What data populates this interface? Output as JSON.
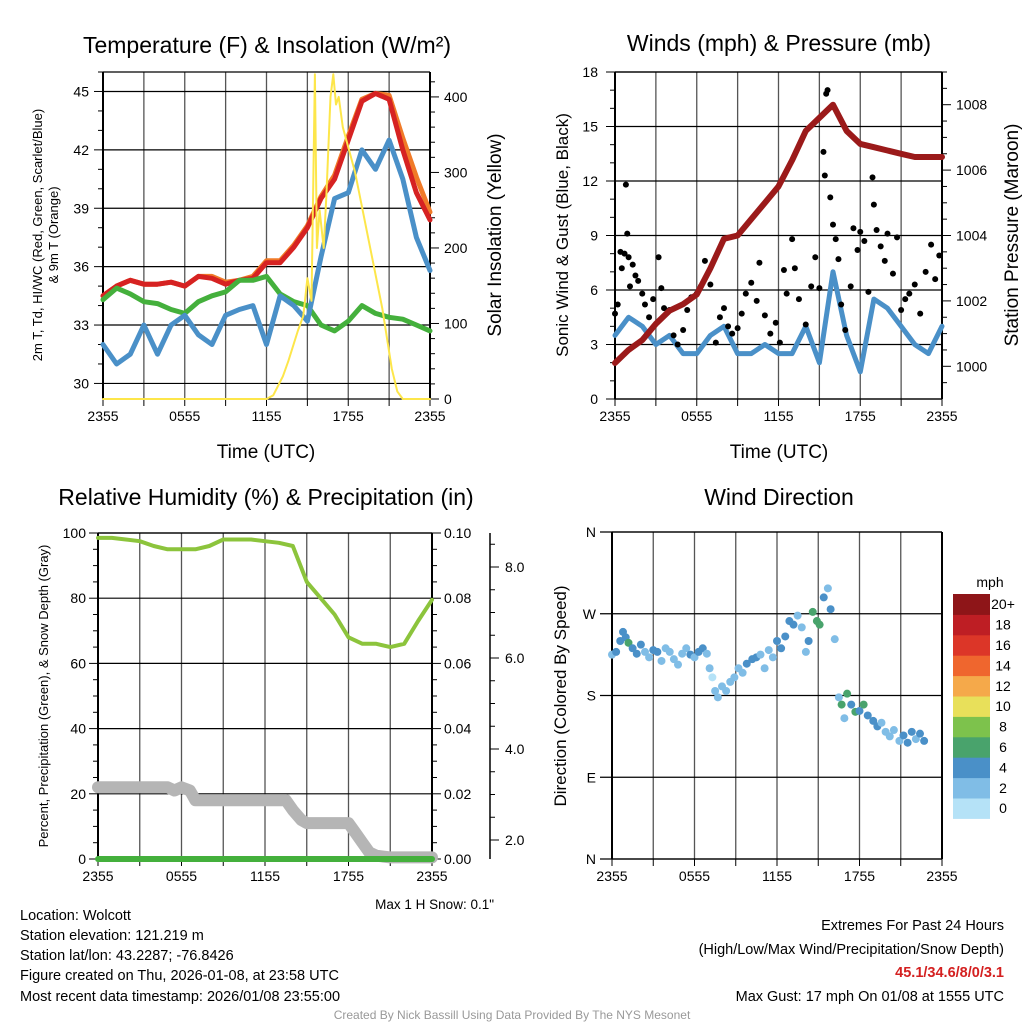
{
  "colors": {
    "red": "#d62222",
    "orange": "#f07a28",
    "green": "#44b03c",
    "blue": "#4a90c8",
    "yellow": "#fde64a",
    "maroon": "#9b1a1a",
    "gust": "#000000",
    "rh": "#8cc43c",
    "precip": "#44b03c",
    "snow": "#b5b5b5"
  },
  "chart_data": [
    {
      "type": "line",
      "title": "Temperature (F) & Insolation (W/m²)",
      "xlabel": "Time (UTC)",
      "ylabel": [
        "2m T, Td, HI/WC (Red, Green, Scarlet/Blue)",
        "& 9m T (Orange)"
      ],
      "ylabel_right": "Solar Insolation (Yellow)",
      "x_ticks": [
        "2355",
        "0555",
        "1155",
        "1755",
        "2355"
      ],
      "x_range_hours": [
        0,
        24
      ],
      "ylim": [
        29.2,
        46
      ],
      "y_ticks": [
        "30",
        "33",
        "36",
        "39",
        "42",
        "45"
      ],
      "ylim_right": [
        0,
        433
      ],
      "y_ticks_right": [
        "0",
        "100",
        "200",
        "300",
        "400"
      ],
      "series": [
        {
          "name": "2m T",
          "color_key": "orange",
          "values": [
            34.5,
            35.0,
            35.3,
            35.1,
            35.1,
            35.2,
            35.0,
            35.5,
            35.5,
            35.2,
            35.3,
            35.5,
            36.3,
            36.3,
            37.1,
            38.1,
            39.6,
            40.7,
            42.7,
            44.6,
            44.9,
            44.8,
            42.6,
            40.6,
            38.8
          ]
        },
        {
          "name": "HI/WC",
          "color_key": "red",
          "values": [
            34.5,
            35.0,
            35.3,
            35.1,
            35.1,
            35.2,
            35.0,
            35.5,
            35.4,
            35.1,
            35.3,
            35.4,
            36.2,
            36.2,
            37.0,
            38.0,
            39.5,
            40.5,
            42.5,
            44.5,
            44.9,
            44.6,
            42.0,
            39.8,
            38.4
          ]
        },
        {
          "name": "Td",
          "color_key": "green",
          "values": [
            34.3,
            34.9,
            34.6,
            34.2,
            34.1,
            33.8,
            33.6,
            34.2,
            34.5,
            34.7,
            35.3,
            35.3,
            35.5,
            34.6,
            34.2,
            34.0,
            33.0,
            32.7,
            33.2,
            34.0,
            33.6,
            33.4,
            33.3,
            33.0,
            32.7
          ]
        },
        {
          "name": "Scarlet/Blue",
          "color_key": "blue",
          "values": [
            32.0,
            31.0,
            31.5,
            33.0,
            31.5,
            33.0,
            33.5,
            32.5,
            32.0,
            33.5,
            33.8,
            34.0,
            32.0,
            34.5,
            34.0,
            33.2,
            36.5,
            39.5,
            39.8,
            42.0,
            41.0,
            42.5,
            40.5,
            37.5,
            35.8
          ]
        }
      ],
      "solar": {
        "color_key": "yellow",
        "hours": [
          0,
          12,
          12.5,
          13.2,
          13.6,
          14.3,
          14.7,
          15.0,
          15.3,
          15.55,
          15.7,
          15.9,
          16.2,
          16.4,
          16.7,
          16.9,
          17.1,
          17.3,
          17.6,
          18.5,
          19.5,
          20.5,
          21.2,
          21.6,
          22,
          24
        ],
        "values": [
          0,
          0,
          5,
          30,
          50,
          90,
          110,
          160,
          130,
          430,
          200,
          250,
          200,
          270,
          400,
          430,
          390,
          400,
          360,
          300,
          210,
          120,
          40,
          10,
          0,
          0
        ]
      }
    },
    {
      "type": "line",
      "title": "Winds (mph) & Pressure (mb)",
      "xlabel": "Time (UTC)",
      "ylabel": "Sonic Wind & Gust (Blue, Black)",
      "ylabel_right": "Station Pressure (Maroon)",
      "x_ticks": [
        "2355",
        "0555",
        "1155",
        "1755",
        "2355"
      ],
      "ylim": [
        0,
        18
      ],
      "y_ticks": [
        "0",
        "3",
        "6",
        "9",
        "12",
        "15",
        "18"
      ],
      "ylim_right": [
        999,
        1009
      ],
      "y_ticks_right": [
        "1000",
        "1002",
        "1004",
        "1006",
        "1008"
      ],
      "wind": [
        3.5,
        4.5,
        4.0,
        3.0,
        3.5,
        2.5,
        2.5,
        3.5,
        4.0,
        2.5,
        2.5,
        3.0,
        2.5,
        2.5,
        4.0,
        2.0,
        7.0,
        3.5,
        1.5,
        5.5,
        5.0,
        4.0,
        3.0,
        2.5,
        4.0
      ],
      "pressure": [
        1000.1,
        1000.5,
        1000.8,
        1001.3,
        1001.7,
        1001.9,
        1002.2,
        1003.0,
        1003.9,
        1004.0,
        1004.5,
        1005.0,
        1005.5,
        1006.3,
        1007.2,
        1007.6,
        1008.0,
        1007.2,
        1006.8,
        1006.7,
        1006.6,
        1006.5,
        1006.4,
        1006.4,
        1006.4
      ],
      "gusts": [
        [
          0,
          4.7
        ],
        [
          0.2,
          5.2
        ],
        [
          0.4,
          8.1
        ],
        [
          0.5,
          7.2
        ],
        [
          0.7,
          8.0
        ],
        [
          0.8,
          11.8
        ],
        [
          0.9,
          9.1
        ],
        [
          1.0,
          7.8
        ],
        [
          1.1,
          6.2
        ],
        [
          1.3,
          7.4
        ],
        [
          1.5,
          6.8
        ],
        [
          1.7,
          6.5
        ],
        [
          2.0,
          5.8
        ],
        [
          2.2,
          5.2
        ],
        [
          2.5,
          4.5
        ],
        [
          2.8,
          5.5
        ],
        [
          3.2,
          7.8
        ],
        [
          3.4,
          6.1
        ],
        [
          3.6,
          5.0
        ],
        [
          4.0,
          4.9
        ],
        [
          4.3,
          3.5
        ],
        [
          4.6,
          3.0
        ],
        [
          5.0,
          3.8
        ],
        [
          5.3,
          4.9
        ],
        [
          5.6,
          5.6
        ],
        [
          6.0,
          5.8
        ],
        [
          6.3,
          6.2
        ],
        [
          6.6,
          7.6
        ],
        [
          7.0,
          6.3
        ],
        [
          7.4,
          3.1
        ],
        [
          7.7,
          4.5
        ],
        [
          8.0,
          5.0
        ],
        [
          8.3,
          4.0
        ],
        [
          8.6,
          3.6
        ],
        [
          9.0,
          3.9
        ],
        [
          9.3,
          4.7
        ],
        [
          9.6,
          5.8
        ],
        [
          10.0,
          6.4
        ],
        [
          10.4,
          5.4
        ],
        [
          10.6,
          7.5
        ],
        [
          11.0,
          4.6
        ],
        [
          11.4,
          3.6
        ],
        [
          11.8,
          4.2
        ],
        [
          12.1,
          3.1
        ],
        [
          12.4,
          7.1
        ],
        [
          12.6,
          5.8
        ],
        [
          13.0,
          8.8
        ],
        [
          13.2,
          7.2
        ],
        [
          13.5,
          5.5
        ],
        [
          14.0,
          4.1
        ],
        [
          14.4,
          6.2
        ],
        [
          14.7,
          7.8
        ],
        [
          15.0,
          6.1
        ],
        [
          15.3,
          13.6
        ],
        [
          15.4,
          12.3
        ],
        [
          15.5,
          16.8
        ],
        [
          15.6,
          17.0
        ],
        [
          15.8,
          11.1
        ],
        [
          16.0,
          9.6
        ],
        [
          16.2,
          8.8
        ],
        [
          16.4,
          7.7
        ],
        [
          16.6,
          5.2
        ],
        [
          16.9,
          3.8
        ],
        [
          17.3,
          6.2
        ],
        [
          17.5,
          9.4
        ],
        [
          17.8,
          8.2
        ],
        [
          18.0,
          9.2
        ],
        [
          18.3,
          8.7
        ],
        [
          18.6,
          5.9
        ],
        [
          18.9,
          12.2
        ],
        [
          19.0,
          10.7
        ],
        [
          19.2,
          9.3
        ],
        [
          19.5,
          8.4
        ],
        [
          19.8,
          7.6
        ],
        [
          20.0,
          9.1
        ],
        [
          20.4,
          6.9
        ],
        [
          20.7,
          8.9
        ],
        [
          21.0,
          4.9
        ],
        [
          21.3,
          5.5
        ],
        [
          21.6,
          5.8
        ],
        [
          22.0,
          6.3
        ],
        [
          22.4,
          4.7
        ],
        [
          22.8,
          7.0
        ],
        [
          23.2,
          8.5
        ],
        [
          23.5,
          6.6
        ],
        [
          23.8,
          7.9
        ]
      ]
    },
    {
      "type": "line",
      "title": "Relative Humidity (%) & Precipitation (in)",
      "ylabel": "Percent, Precipitation (Green), & Snow Depth (Gray)",
      "x_ticks": [
        "2355",
        "0555",
        "1155",
        "1755",
        "2355"
      ],
      "ylim": [
        0,
        100
      ],
      "y_ticks": [
        "0",
        "20",
        "40",
        "60",
        "80",
        "100"
      ],
      "ylim_right": [
        0,
        0.1
      ],
      "y_ticks_right": [
        "0.00",
        "0.02",
        "0.04",
        "0.06",
        "0.08",
        "0.10"
      ],
      "snow_ticks": [
        "2.0",
        "4.0",
        "6.0",
        "8.0"
      ],
      "rh": [
        98.5,
        98.5,
        98,
        97.5,
        96,
        95,
        95,
        95,
        96,
        98,
        98,
        98,
        97.5,
        97,
        96,
        85,
        80,
        75,
        68,
        66,
        66,
        65,
        66,
        73,
        79.5
      ],
      "precip": [
        0,
        0,
        0,
        0,
        0,
        0,
        0,
        0,
        0,
        0,
        0,
        0,
        0,
        0,
        0,
        0,
        0,
        0,
        0,
        0,
        0,
        0,
        0,
        0,
        0
      ],
      "snow_depth_axis_pct": {
        "hours": [
          0,
          5,
          5.5,
          6,
          6.6,
          7,
          13.5,
          14,
          14.6,
          15,
          18,
          18.5,
          19,
          19.5,
          20,
          21,
          24
        ],
        "values": [
          22,
          22,
          21,
          22,
          21,
          18,
          18,
          15,
          12,
          11,
          11,
          8,
          5,
          2,
          1,
          0.5,
          0.5
        ]
      },
      "note": "Max 1 H Snow: 0.1\""
    },
    {
      "type": "scatter",
      "title": "Wind Direction",
      "ylabel": "Direction (Colored By Speed)",
      "x_ticks": [
        "2355",
        "0555",
        "1155",
        "1755",
        "2355"
      ],
      "y_ticks": [
        "N",
        "E",
        "S",
        "W",
        "N"
      ],
      "ylim": [
        0,
        360
      ],
      "colorbar": {
        "title": "mph",
        "labels": [
          "0",
          "2",
          "4",
          "6",
          "8",
          "10",
          "12",
          "14",
          "16",
          "18",
          "20+"
        ],
        "colors": [
          "#b5e2f7",
          "#80bde6",
          "#4a90c8",
          "#49a36c",
          "#7dc24c",
          "#e8e05a",
          "#f5a94a",
          "#ef662e",
          "#dc3628",
          "#be1e24",
          "#8e1518"
        ]
      },
      "points": [
        [
          0,
          225,
          3
        ],
        [
          0.3,
          228,
          4
        ],
        [
          0.6,
          240,
          4
        ],
        [
          0.8,
          250,
          4
        ],
        [
          1.0,
          244,
          5
        ],
        [
          1.2,
          238,
          6
        ],
        [
          1.5,
          232,
          4
        ],
        [
          1.8,
          226,
          4
        ],
        [
          2.1,
          236,
          4
        ],
        [
          2.4,
          228,
          2
        ],
        [
          2.7,
          222,
          2
        ],
        [
          3.0,
          230,
          4
        ],
        [
          3.3,
          228,
          4
        ],
        [
          3.6,
          218,
          2
        ],
        [
          3.9,
          232,
          2
        ],
        [
          4.2,
          228,
          2
        ],
        [
          4.5,
          220,
          2
        ],
        [
          4.8,
          214,
          2
        ],
        [
          5.1,
          226,
          2
        ],
        [
          5.4,
          232,
          2
        ],
        [
          5.7,
          225,
          4
        ],
        [
          6.0,
          222,
          2
        ],
        [
          6.3,
          228,
          4
        ],
        [
          6.6,
          232,
          4
        ],
        [
          6.9,
          226,
          2
        ],
        [
          7.1,
          210,
          2
        ],
        [
          7.3,
          200,
          1
        ],
        [
          7.5,
          185,
          2
        ],
        [
          7.7,
          178,
          2
        ],
        [
          8.0,
          190,
          2
        ],
        [
          8.3,
          185,
          2
        ],
        [
          8.6,
          195,
          2
        ],
        [
          8.9,
          200,
          2
        ],
        [
          9.2,
          210,
          3
        ],
        [
          9.5,
          205,
          2
        ],
        [
          9.8,
          215,
          4
        ],
        [
          10.2,
          220,
          4
        ],
        [
          10.5,
          222,
          4
        ],
        [
          10.8,
          225,
          2
        ],
        [
          11.1,
          210,
          2
        ],
        [
          11.4,
          230,
          2
        ],
        [
          11.7,
          222,
          2
        ],
        [
          12.0,
          240,
          4
        ],
        [
          12.3,
          232,
          4
        ],
        [
          12.6,
          245,
          4
        ],
        [
          12.9,
          262,
          4
        ],
        [
          13.2,
          258,
          4
        ],
        [
          13.5,
          268,
          2
        ],
        [
          13.8,
          255,
          2
        ],
        [
          14.1,
          228,
          2
        ],
        [
          14.3,
          240,
          4
        ],
        [
          14.6,
          272,
          7
        ],
        [
          14.9,
          262,
          6
        ],
        [
          15.1,
          258,
          6
        ],
        [
          15.4,
          288,
          4
        ],
        [
          15.7,
          298,
          2
        ],
        [
          15.9,
          275,
          4
        ],
        [
          16.2,
          242,
          2
        ],
        [
          16.5,
          178,
          2
        ],
        [
          16.7,
          170,
          6
        ],
        [
          16.9,
          155,
          2
        ],
        [
          17.1,
          182,
          6
        ],
        [
          17.4,
          170,
          4
        ],
        [
          17.7,
          162,
          6
        ],
        [
          18.0,
          163,
          4
        ],
        [
          18.3,
          170,
          6
        ],
        [
          18.6,
          158,
          4
        ],
        [
          19.0,
          152,
          4
        ],
        [
          19.3,
          146,
          4
        ],
        [
          19.6,
          150,
          2
        ],
        [
          19.9,
          140,
          2
        ],
        [
          20.2,
          135,
          2
        ],
        [
          20.5,
          142,
          2
        ],
        [
          20.9,
          130,
          2
        ],
        [
          21.2,
          136,
          4
        ],
        [
          21.5,
          128,
          4
        ],
        [
          21.8,
          140,
          4
        ],
        [
          22.1,
          132,
          2
        ],
        [
          22.4,
          138,
          4
        ],
        [
          22.7,
          130,
          4
        ]
      ]
    }
  ],
  "footer": {
    "location": "Location: Wolcott",
    "elevation": "Station elevation: 121.219 m",
    "latlon": "Station lat/lon: 43.2287; -76.8426",
    "created": "Figure created on Thu, 2026-01-08, at 23:58 UTC",
    "recent": "Most recent data timestamp: 2026/01/08 23:55:00",
    "extremes_title": "Extremes For Past 24 Hours",
    "extremes_legend": "(High/Low/Max Wind/Precipitation/Snow Depth)",
    "extremes_values": "45.1/34.6/8/0/3.1",
    "max_gust": "Max Gust: 17 mph On 01/08 at 1555 UTC",
    "credit": "Created By Nick Bassill Using Data Provided By The NYS Mesonet"
  }
}
